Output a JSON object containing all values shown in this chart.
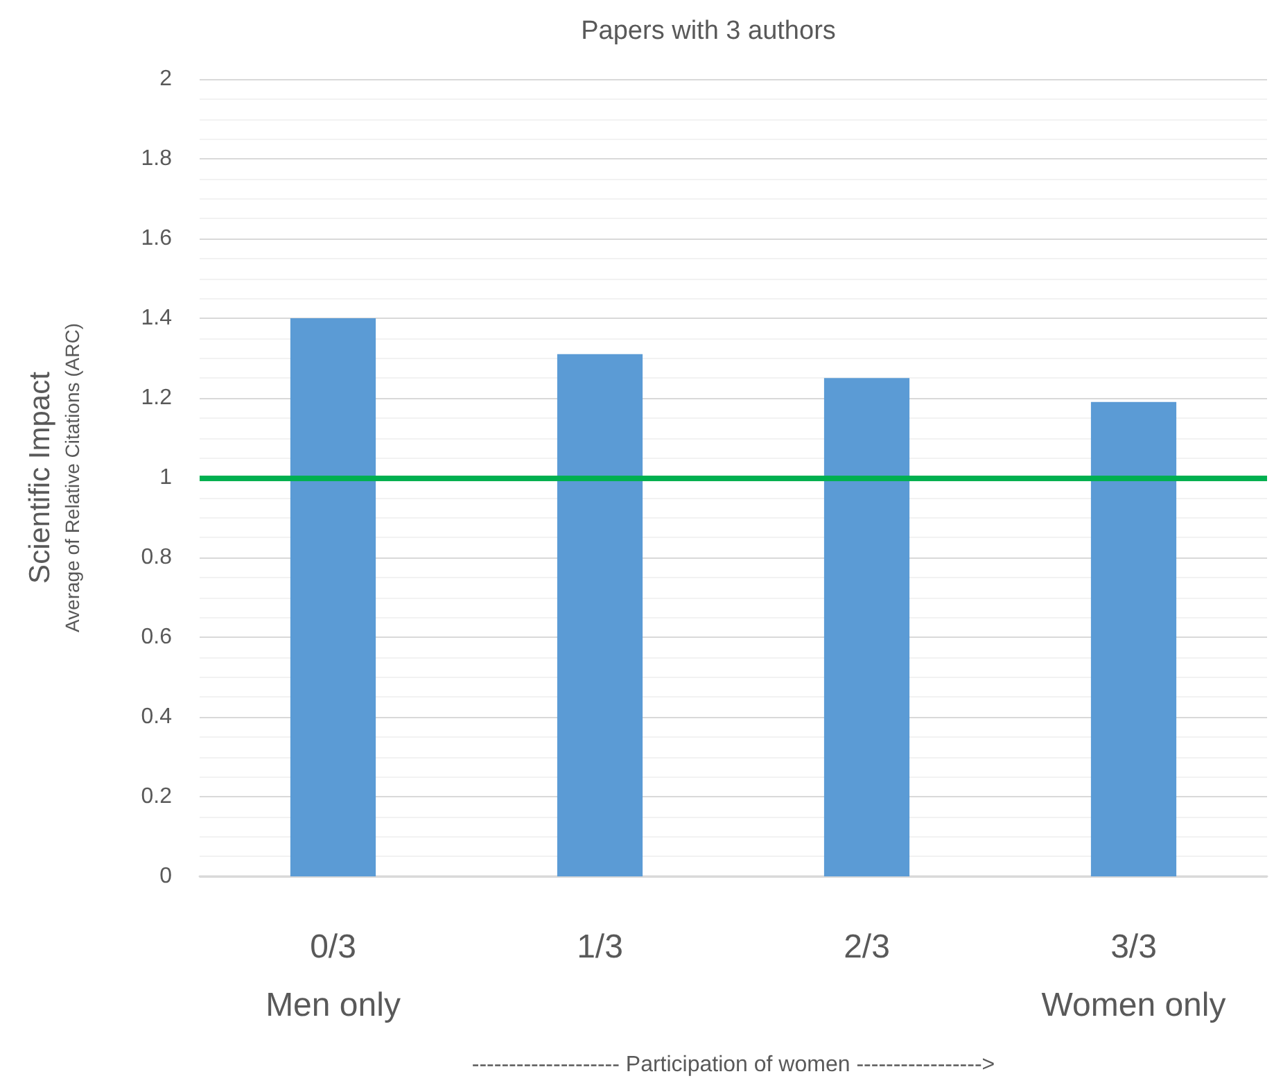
{
  "chart_data": {
    "type": "bar",
    "title": "Papers with 3 authors",
    "categories": [
      "0/3\nMen only",
      "1/3",
      "2/3",
      "3/3\nWomen only"
    ],
    "values": [
      1.4,
      1.31,
      1.25,
      1.19
    ],
    "color": "#5b9bd5",
    "xlabel": "-------------------- Participation of women ----------------->",
    "ylabel": "Scientific Impact\nAverage of Relative Citations (ARC)",
    "ylim": [
      0,
      2
    ],
    "yticks": [
      0,
      0.2,
      0.4,
      0.6,
      0.8,
      1,
      1.2,
      1.4,
      1.6,
      1.8,
      2
    ],
    "grid": "y",
    "ref_lines": [
      {
        "axis": "y",
        "value": 1,
        "color": "#00b050"
      }
    ]
  }
}
